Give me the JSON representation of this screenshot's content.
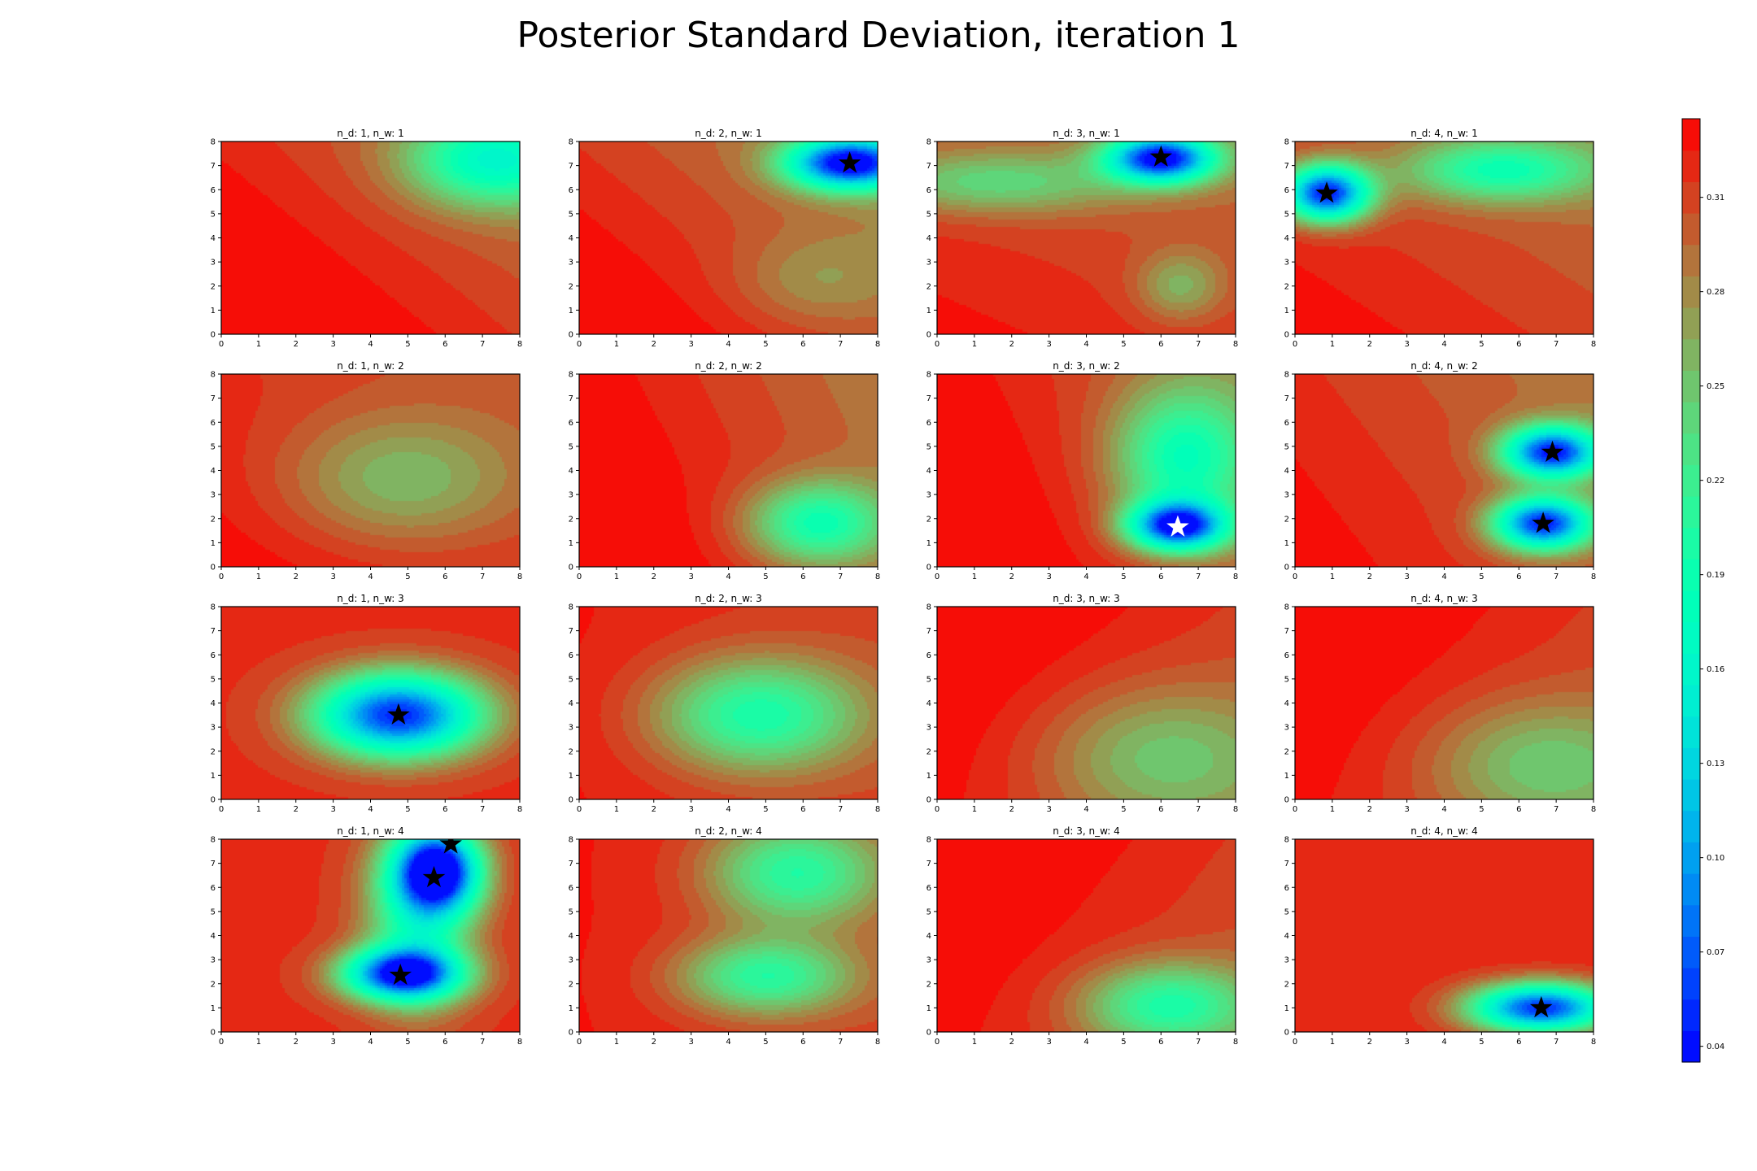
{
  "title": "Posterior Standard Deviation, iteration 1",
  "colors": {
    "background": "#ffffff",
    "axis": "#000000",
    "star_default": "#000000"
  },
  "chart_data": {
    "type": "heatmap",
    "subtype": "filled-contour-grid",
    "colormap": "rainbow",
    "grid_rows": 4,
    "grid_cols": 4,
    "xlim": [
      0,
      8
    ],
    "ylim": [
      0,
      8
    ],
    "xticks": [
      "0",
      "1",
      "2",
      "3",
      "4",
      "5",
      "6",
      "7",
      "8"
    ],
    "yticks": [
      "0",
      "1",
      "2",
      "3",
      "4",
      "5",
      "6",
      "7",
      "8"
    ],
    "colorbar": {
      "min": 0.035,
      "max": 0.335,
      "ticks": [
        "0.04",
        "0.07",
        "0.10",
        "0.13",
        "0.16",
        "0.19",
        "0.22",
        "0.25",
        "0.28",
        "0.31"
      ],
      "tick_values": [
        0.04,
        0.07,
        0.1,
        0.13,
        0.16,
        0.19,
        0.22,
        0.25,
        0.28,
        0.31
      ],
      "levels": 30,
      "placement": "right"
    },
    "panels": [
      {
        "title": "n_d: 1, n_w: 1",
        "row": 0,
        "col": 0,
        "base": 0.318,
        "tilt": [
          -0.005,
          -0.004
        ],
        "dips": [
          {
            "x": 7.3,
            "y": 7.2,
            "sx": 1.6,
            "sy": 1.3,
            "depth": 0.13
          }
        ],
        "stars": []
      },
      {
        "title": "n_d: 2, n_w: 1",
        "row": 0,
        "col": 1,
        "base": 0.31,
        "tilt": [
          -0.005,
          -0.004
        ],
        "dips": [
          {
            "x": 7.25,
            "y": 7.1,
            "sx": 1.15,
            "sy": 0.75,
            "depth": 0.27
          },
          {
            "x": 6.3,
            "y": 2.2,
            "sx": 1.5,
            "sy": 1.3,
            "depth": 0.03
          }
        ],
        "stars": [
          {
            "x": 7.25,
            "y": 7.1,
            "color": "#000000"
          }
        ]
      },
      {
        "title": "n_d: 3, n_w: 1",
        "row": 0,
        "col": 2,
        "base": 0.31,
        "tilt": [
          -0.002,
          -0.003
        ],
        "dips": [
          {
            "x": 6.0,
            "y": 7.3,
            "sx": 1.0,
            "sy": 0.7,
            "depth": 0.27
          },
          {
            "x": 1.5,
            "y": 6.3,
            "sx": 2.5,
            "sy": 0.9,
            "depth": 0.07
          },
          {
            "x": 6.5,
            "y": 2.0,
            "sx": 0.8,
            "sy": 1.0,
            "depth": 0.05
          }
        ],
        "stars": [
          {
            "x": 6.0,
            "y": 7.35,
            "color": "#000000"
          }
        ]
      },
      {
        "title": "n_d: 4, n_w: 1",
        "row": 0,
        "col": 3,
        "base": 0.31,
        "tilt": [
          -0.003,
          -0.003
        ],
        "dips": [
          {
            "x": 0.85,
            "y": 5.85,
            "sx": 0.8,
            "sy": 0.8,
            "depth": 0.27
          },
          {
            "x": 5.5,
            "y": 6.8,
            "sx": 1.8,
            "sy": 0.9,
            "depth": 0.11
          }
        ],
        "stars": [
          {
            "x": 0.85,
            "y": 5.85,
            "color": "#000000"
          }
        ]
      },
      {
        "title": "n_d: 1, n_w: 2",
        "row": 1,
        "col": 0,
        "base": 0.318,
        "tilt": [
          -0.002,
          -0.002
        ],
        "dips": [
          {
            "x": 4.8,
            "y": 3.6,
            "sx": 2.2,
            "sy": 1.9,
            "depth": 0.06
          }
        ],
        "stars": []
      },
      {
        "title": "n_d: 2, n_w: 2",
        "row": 1,
        "col": 1,
        "base": 0.318,
        "tilt": [
          -0.006,
          -0.002
        ],
        "dips": [
          {
            "x": 6.4,
            "y": 1.8,
            "sx": 1.3,
            "sy": 1.2,
            "depth": 0.12
          }
        ],
        "stars": []
      },
      {
        "title": "n_d: 3, n_w: 2",
        "row": 1,
        "col": 2,
        "base": 0.318,
        "tilt": [
          -0.006,
          -0.002
        ],
        "dips": [
          {
            "x": 6.45,
            "y": 1.7,
            "sx": 0.9,
            "sy": 0.7,
            "depth": 0.26
          },
          {
            "x": 6.6,
            "y": 4.5,
            "sx": 1.3,
            "sy": 2.0,
            "depth": 0.12
          }
        ],
        "stars": [
          {
            "x": 6.45,
            "y": 1.65,
            "color": "#ffffff"
          }
        ]
      },
      {
        "title": "n_d: 4, n_w: 2",
        "row": 1,
        "col": 3,
        "base": 0.31,
        "tilt": [
          -0.004,
          -0.002
        ],
        "dips": [
          {
            "x": 6.9,
            "y": 4.75,
            "sx": 0.9,
            "sy": 0.75,
            "depth": 0.26
          },
          {
            "x": 6.65,
            "y": 1.8,
            "sx": 0.9,
            "sy": 0.75,
            "depth": 0.26
          }
        ],
        "stars": [
          {
            "x": 6.9,
            "y": 4.75,
            "color": "#000000"
          },
          {
            "x": 6.65,
            "y": 1.8,
            "color": "#000000"
          }
        ]
      },
      {
        "title": "n_d: 1, n_w: 3",
        "row": 2,
        "col": 0,
        "base": 0.318,
        "tilt": [
          0,
          0
        ],
        "dips": [
          {
            "x": 4.75,
            "y": 3.5,
            "sx": 1.55,
            "sy": 1.2,
            "depth": 0.27
          }
        ],
        "stars": [
          {
            "x": 4.75,
            "y": 3.5,
            "color": "#000000"
          }
        ]
      },
      {
        "title": "n_d: 2, n_w: 3",
        "row": 2,
        "col": 1,
        "base": 0.318,
        "tilt": [
          -0.002,
          0
        ],
        "dips": [
          {
            "x": 4.8,
            "y": 3.5,
            "sx": 1.9,
            "sy": 1.6,
            "depth": 0.12
          }
        ],
        "stars": []
      },
      {
        "title": "n_d: 3, n_w: 3",
        "row": 2,
        "col": 2,
        "base": 0.322,
        "tilt": [
          -0.004,
          0.002
        ],
        "dips": [
          {
            "x": 6.0,
            "y": 1.8,
            "sx": 2.2,
            "sy": 2.0,
            "depth": 0.06
          }
        ],
        "stars": []
      },
      {
        "title": "n_d: 4, n_w: 3",
        "row": 2,
        "col": 3,
        "base": 0.322,
        "tilt": [
          -0.004,
          0.002
        ],
        "dips": [
          {
            "x": 6.6,
            "y": 1.5,
            "sx": 2.1,
            "sy": 1.8,
            "depth": 0.06
          }
        ],
        "stars": []
      },
      {
        "title": "n_d: 1, n_w: 4",
        "row": 3,
        "col": 0,
        "base": 0.318,
        "tilt": [
          0,
          0
        ],
        "dips": [
          {
            "x": 4.85,
            "y": 2.4,
            "sx": 1.1,
            "sy": 0.75,
            "depth": 0.26
          },
          {
            "x": 5.8,
            "y": 6.7,
            "sx": 0.8,
            "sy": 1.2,
            "depth": 0.28
          },
          {
            "x": 5.3,
            "y": 4.8,
            "sx": 1.0,
            "sy": 2.5,
            "depth": 0.12
          }
        ],
        "stars": [
          {
            "x": 4.8,
            "y": 2.35,
            "color": "#000000"
          },
          {
            "x": 5.7,
            "y": 6.4,
            "color": "#000000"
          },
          {
            "x": 6.15,
            "y": 7.8,
            "color": "#000000"
          }
        ]
      },
      {
        "title": "n_d: 2, n_w: 4",
        "row": 3,
        "col": 1,
        "base": 0.318,
        "tilt": [
          -0.002,
          0
        ],
        "dips": [
          {
            "x": 5.0,
            "y": 2.3,
            "sx": 1.6,
            "sy": 1.1,
            "depth": 0.11
          },
          {
            "x": 5.8,
            "y": 6.6,
            "sx": 1.6,
            "sy": 1.5,
            "depth": 0.11
          }
        ],
        "stars": []
      },
      {
        "title": "n_d: 3, n_w: 4",
        "row": 3,
        "col": 2,
        "base": 0.322,
        "tilt": [
          -0.004,
          0.002
        ],
        "dips": [
          {
            "x": 6.2,
            "y": 1.1,
            "sx": 1.6,
            "sy": 1.2,
            "depth": 0.11
          }
        ],
        "stars": []
      },
      {
        "title": "n_d: 4, n_w: 4",
        "row": 3,
        "col": 3,
        "base": 0.322,
        "tilt": [
          0,
          0
        ],
        "dips": [
          {
            "x": 6.6,
            "y": 1.0,
            "sx": 1.3,
            "sy": 0.7,
            "depth": 0.27
          }
        ],
        "stars": [
          {
            "x": 6.6,
            "y": 1.0,
            "color": "#000000"
          }
        ]
      }
    ]
  }
}
